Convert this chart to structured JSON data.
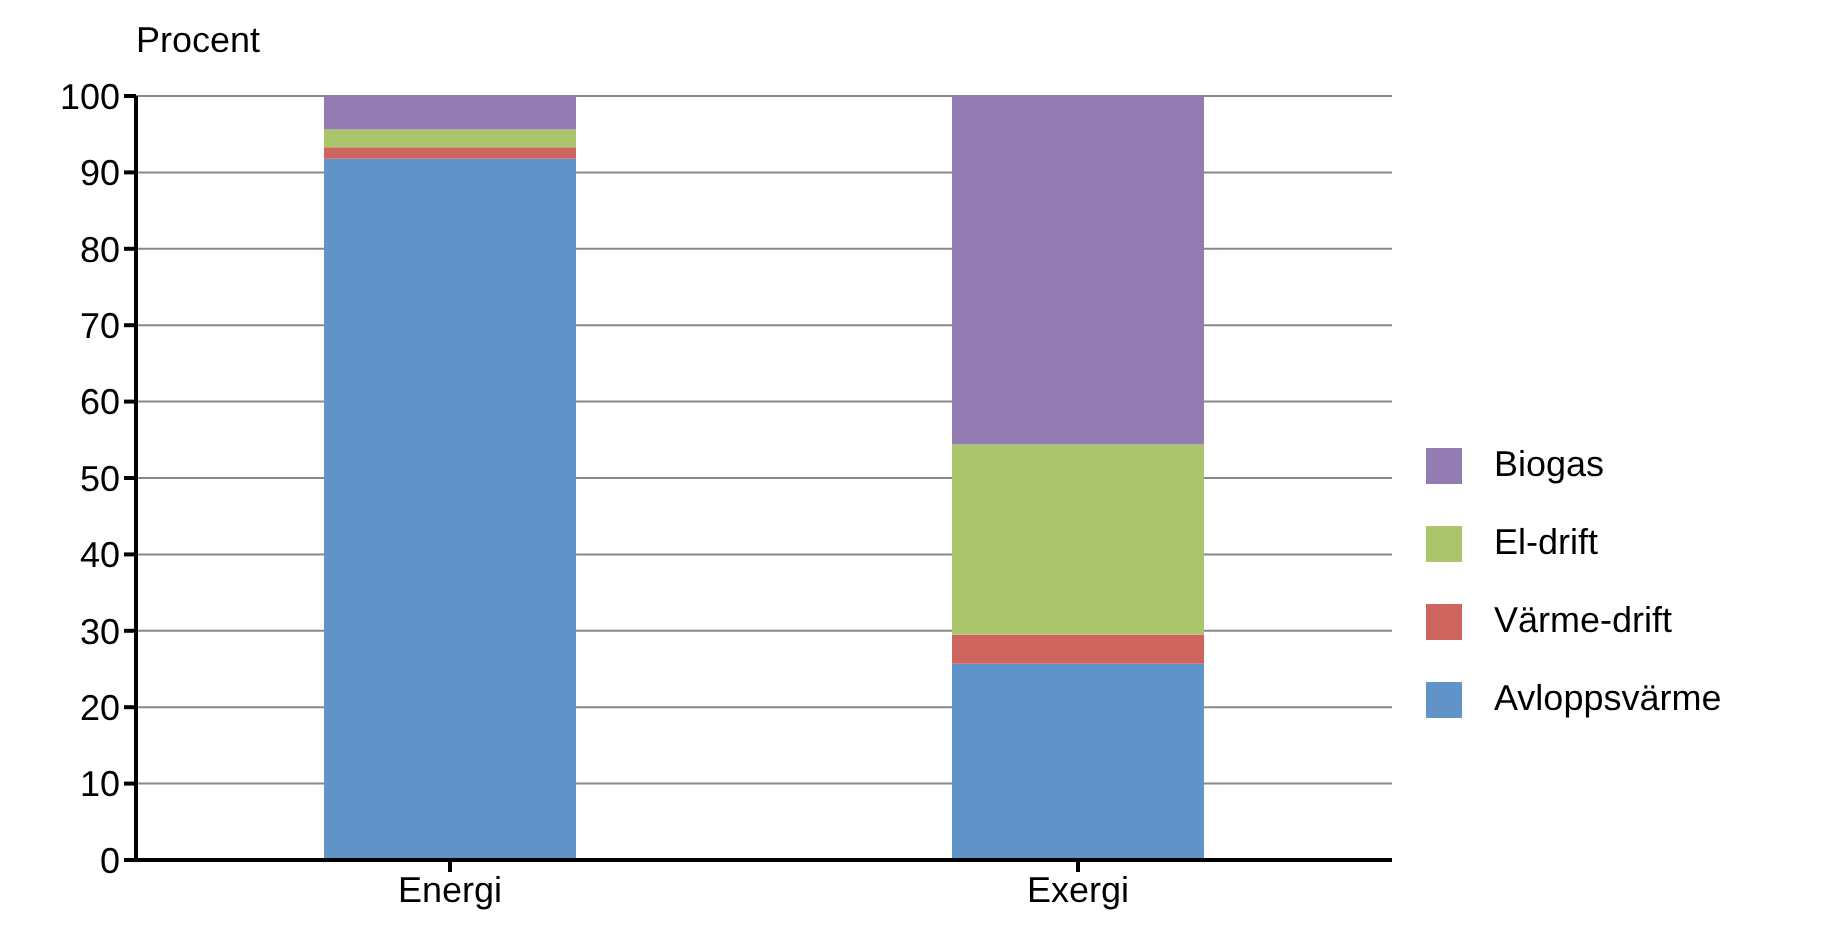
{
  "chart_data": {
    "type": "bar",
    "stacked": true,
    "ylabel": "Procent",
    "categories": [
      "Energi",
      "Exergi"
    ],
    "series": [
      {
        "name": "Avloppsvärme",
        "color": "#6094c8",
        "values": [
          91.8,
          25.7
        ]
      },
      {
        "name": "Värme-drift",
        "color": "#cd655e",
        "values": [
          1.5,
          3.8
        ]
      },
      {
        "name": "El-drift",
        "color": "#abc56c",
        "values": [
          2.3,
          24.9
        ]
      },
      {
        "name": "Biogas",
        "color": "#927cb2",
        "values": [
          4.4,
          45.6
        ]
      }
    ],
    "ylim": [
      0,
      100
    ],
    "yticks": [
      0,
      10,
      20,
      30,
      40,
      50,
      60,
      70,
      80,
      90,
      100
    ],
    "grid": "y",
    "legend": "right"
  }
}
